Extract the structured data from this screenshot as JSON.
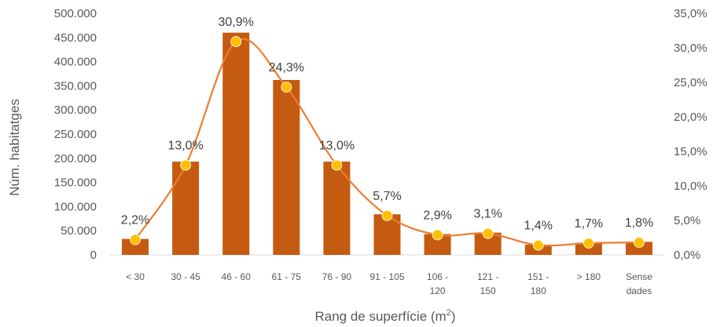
{
  "chart_data": {
    "type": "bar",
    "xlabel": "Rang de superfície (m",
    "xlabel_sup": "2",
    "xlabel_end": ")",
    "ylabel": "Núm. habitatges",
    "categories": [
      [
        "< 30"
      ],
      [
        "30 - 45"
      ],
      [
        "46 - 60"
      ],
      [
        "61 - 75"
      ],
      [
        "76 - 90"
      ],
      [
        "91 - 105"
      ],
      [
        "106 -",
        "120"
      ],
      [
        "121 -",
        "150"
      ],
      [
        "151 -",
        "180"
      ],
      [
        "> 180"
      ],
      [
        "Sense",
        "dades"
      ]
    ],
    "series": [
      {
        "type": "bar",
        "axis": "left",
        "values": [
          33000,
          193000,
          460000,
          362000,
          193000,
          84000,
          43000,
          46000,
          21000,
          25000,
          27000
        ]
      },
      {
        "type": "line",
        "axis": "right",
        "values": [
          2.2,
          13.0,
          30.9,
          24.3,
          13.0,
          5.7,
          2.9,
          3.1,
          1.4,
          1.7,
          1.8
        ],
        "labels": [
          "2,2%",
          "13,0%",
          "30,9%",
          "24,3%",
          "13,0%",
          "5,7%",
          "2,9%",
          "3,1%",
          "1,4%",
          "1,7%",
          "1,8%"
        ]
      }
    ],
    "y_left": {
      "ylim": [
        0,
        500000
      ],
      "ticks": [
        0,
        50000,
        100000,
        150000,
        200000,
        250000,
        300000,
        350000,
        400000,
        450000,
        500000
      ],
      "tick_labels": [
        "0",
        "50.000",
        "100.000",
        "150.000",
        "200.000",
        "250.000",
        "300.000",
        "350.000",
        "400.000",
        "450.000",
        "500.000"
      ]
    },
    "y_right": {
      "ylim": [
        0,
        35
      ],
      "ticks": [
        0,
        5,
        10,
        15,
        20,
        25,
        30,
        35
      ],
      "tick_labels": [
        "0,0%",
        "5,0%",
        "10,0%",
        "15,0%",
        "20,0%",
        "25,0%",
        "30,0%",
        "35,0%"
      ]
    },
    "grid": false,
    "legend": "none",
    "colors": {
      "bar": "#C55A11",
      "line": "#ED7D31",
      "marker": "#FFC000"
    }
  }
}
